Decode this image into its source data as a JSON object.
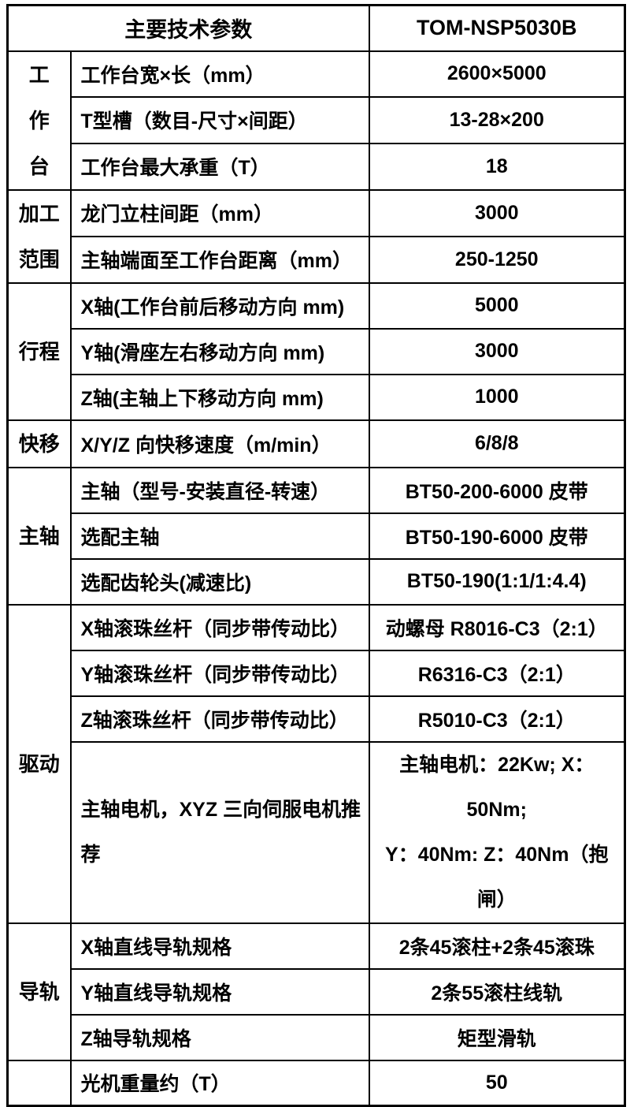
{
  "page": {
    "background_color": "#ffffff",
    "border_color": "#000000",
    "text_color": "#000000"
  },
  "table": {
    "header": {
      "title": "主要技术参数",
      "model": "TOM-NSP5030B"
    },
    "categories": [
      {
        "id": "worktable",
        "label": "工\n作\n台"
      },
      {
        "id": "machining-range",
        "label": "加工\n范围"
      },
      {
        "id": "travel",
        "label": "行程"
      },
      {
        "id": "rapid-traverse",
        "label": "快移"
      },
      {
        "id": "spindle",
        "label": "主轴"
      },
      {
        "id": "drive",
        "label": "驱动"
      },
      {
        "id": "guideway",
        "label": "导轨"
      },
      {
        "id": "blank",
        "label": ""
      }
    ],
    "rows": [
      {
        "label": "工作台宽×长（mm）",
        "value": "2600×5000"
      },
      {
        "label": "T型槽（数目-尺寸×间距）",
        "value": "13-28×200"
      },
      {
        "label": "工作台最大承重（T）",
        "value": "18"
      },
      {
        "label": "龙门立柱间距（mm）",
        "value": "3000"
      },
      {
        "label": "主轴端面至工作台距离（mm）",
        "value": "250-1250"
      },
      {
        "label": "X轴(工作台前后移动方向 mm)",
        "value": "5000"
      },
      {
        "label": "Y轴(滑座左右移动方向 mm)",
        "value": "3000"
      },
      {
        "label": "Z轴(主轴上下移动方向 mm)",
        "value": "1000"
      },
      {
        "label": "X/Y/Z 向快移速度（m/min）",
        "value": "6/8/8"
      },
      {
        "label": "主轴（型号-安装直径-转速）",
        "value": "BT50-200-6000 皮带"
      },
      {
        "label": "选配主轴",
        "value": "BT50-190-6000 皮带"
      },
      {
        "label": "选配齿轮头(减速比)",
        "value": "BT50-190(1:1/1:4.4)"
      },
      {
        "label": "X轴滚珠丝杆（同步带传动比）",
        "value": "动螺母 R8016-C3（2:1）"
      },
      {
        "label": "Y轴滚珠丝杆（同步带传动比）",
        "value": "R6316-C3（2:1）"
      },
      {
        "label": "Z轴滚珠丝杆（同步带传动比）",
        "value": "R5010-C3（2:1）"
      },
      {
        "label": "主轴电机，XYZ 三向伺服电机推\n荐",
        "value": "主轴电机：22Kw; X：50Nm;\nY：40Nm: Z：40Nm（抱闸）"
      },
      {
        "label": "X轴直线导轨规格",
        "value": "2条45滚柱+2条45滚珠"
      },
      {
        "label": "Y轴直线导轨规格",
        "value": "2条55滚柱线轨"
      },
      {
        "label": "Z轴导轨规格",
        "value": "矩型滑轨"
      },
      {
        "label": "光机重量约（T）",
        "value": "50"
      }
    ]
  }
}
